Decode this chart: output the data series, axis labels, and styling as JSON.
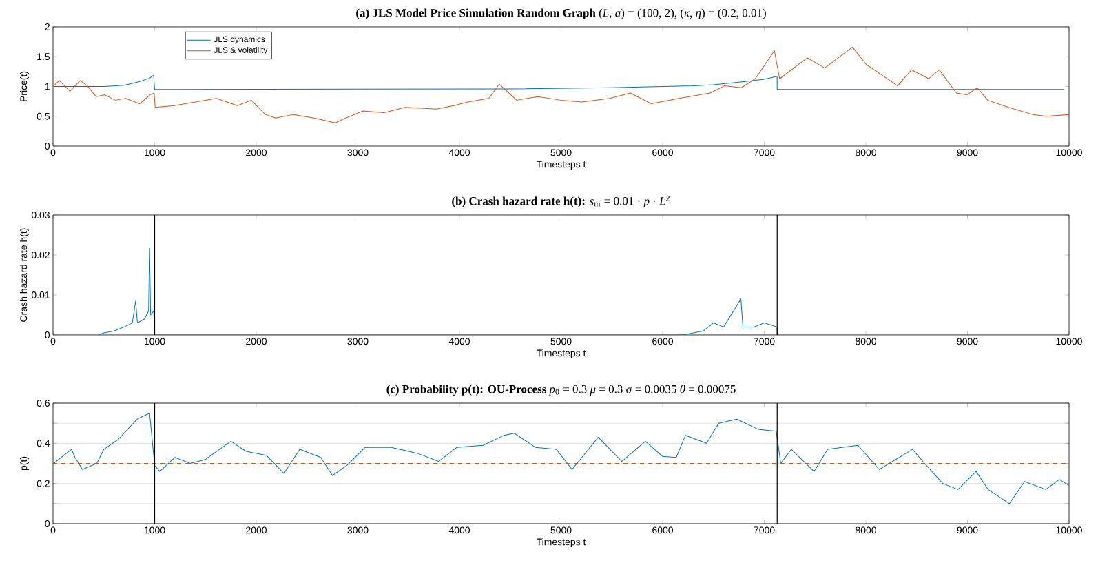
{
  "chart_data": [
    {
      "type": "line",
      "title": "**(a) JLS Model Price Simulation Random Graph** (*L*, *a*) = (100, 2), (*κ*, *η*) = (0.2, 0.01)",
      "xlabel": "Timesteps t",
      "ylabel": "Price(t)",
      "xlim": [
        0,
        10000
      ],
      "ylim": [
        0,
        2
      ],
      "xticks": [
        0,
        1000,
        2000,
        3000,
        4000,
        5000,
        6000,
        7000,
        8000,
        9000,
        10000
      ],
      "yticks": [
        0,
        0.5,
        1,
        1.5,
        2
      ],
      "legend": "top left",
      "series": [
        {
          "name": "JLS dynamics",
          "color": "#0072bd",
          "x": [
            0,
            500,
            700,
            850,
            950,
            990,
            1000,
            4500,
            5500,
            6000,
            6300,
            6500,
            6800,
            7000,
            7126,
            7127,
            9950
          ],
          "values": [
            1.0,
            1.0,
            1.02,
            1.08,
            1.14,
            1.19,
            0.95,
            0.96,
            0.98,
            1.0,
            1.01,
            1.03,
            1.08,
            1.12,
            1.17,
            0.95,
            0.95
          ]
        },
        {
          "name": "JLS & volatility",
          "color": "#d95319",
          "x": [
            0,
            62,
            165,
            268,
            337,
            423,
            509,
            612,
            715,
            852,
            955,
            995,
            1005,
            1196,
            1402,
            1608,
            1814,
            1952,
            2089,
            2192,
            2364,
            2570,
            2777,
            2880,
            3052,
            3258,
            3464,
            3773,
            3945,
            4082,
            4289,
            4392,
            4564,
            4770,
            5000,
            5205,
            5478,
            5683,
            5888,
            6161,
            6468,
            6605,
            6775,
            6912,
            7100,
            7151,
            7424,
            7595,
            7868,
            8004,
            8312,
            8448,
            8619,
            8721,
            8892,
            8994,
            9097,
            9199,
            9404,
            9642,
            9780,
            10000
          ],
          "values": [
            1.0,
            1.1,
            0.92,
            1.1,
            1.01,
            0.83,
            0.86,
            0.77,
            0.8,
            0.71,
            0.86,
            0.89,
            0.65,
            0.68,
            0.74,
            0.8,
            0.68,
            0.77,
            0.53,
            0.47,
            0.53,
            0.47,
            0.39,
            0.47,
            0.59,
            0.56,
            0.65,
            0.62,
            0.68,
            0.74,
            0.8,
            1.04,
            0.77,
            0.83,
            0.77,
            0.74,
            0.8,
            0.89,
            0.71,
            0.8,
            0.89,
            1.01,
            0.98,
            1.13,
            1.6,
            1.13,
            1.48,
            1.31,
            1.66,
            1.37,
            1.01,
            1.28,
            1.13,
            1.28,
            0.89,
            0.86,
            0.98,
            0.77,
            0.65,
            0.53,
            0.5,
            0.53
          ]
        }
      ]
    },
    {
      "type": "line",
      "title": "**(b) Crash hazard rate h(t):** *s*$_{m}$ = 0.01 · *p* · *L*$^{2}$",
      "xlabel": "Timesteps t",
      "ylabel": "Crash hazard rate h(t)",
      "xlim": [
        0,
        10000
      ],
      "ylim": [
        0,
        0.03
      ],
      "xticks": [
        0,
        1000,
        2000,
        3000,
        4000,
        5000,
        6000,
        7000,
        8000,
        9000,
        10000
      ],
      "yticks": [
        0,
        0.01,
        0.02,
        0.03
      ],
      "ref_lines": [
        {
          "axis": "x",
          "value": 1000,
          "color": "#000000"
        },
        {
          "axis": "x",
          "value": 7127,
          "color": "#000000"
        }
      ],
      "series": [
        {
          "color": "#0072bd",
          "x": [
            450,
            500,
            600,
            700,
            780,
            813,
            830,
            900,
            940,
            950,
            960,
            990,
            1000,
            6200,
            6400,
            6500,
            6600,
            6770,
            6790,
            6900,
            7000,
            7126,
            7127
          ],
          "values": [
            0,
            0.0005,
            0.001,
            0.002,
            0.003,
            0.0085,
            0.003,
            0.004,
            0.006,
            0.0217,
            0.005,
            0.006,
            0,
            0,
            0.001,
            0.003,
            0.002,
            0.009,
            0.002,
            0.002,
            0.003,
            0.002,
            0
          ]
        }
      ]
    },
    {
      "type": "line",
      "title": "**(c) Probability p(t): OU-Process** *p*$_{0}$ = 0.3 *μ* = 0.3 *σ* = 0.0035 *θ* = 0.00075",
      "xlabel": "Timesteps t",
      "ylabel": "p(t)",
      "xlim": [
        0,
        10000
      ],
      "ylim": [
        0,
        0.6
      ],
      "xticks": [
        0,
        1000,
        2000,
        3000,
        4000,
        5000,
        6000,
        7000,
        8000,
        9000,
        10000
      ],
      "yticks": [
        0,
        {
          "value": 0.1,
          "label": null
        },
        0.2,
        {
          "value": 0.3,
          "label": null
        },
        0.4,
        {
          "value": 0.5,
          "label": null
        },
        0.6
      ],
      "grid": "y",
      "ref_lines": [
        {
          "axis": "y",
          "value": 0.3,
          "color": "#d95319",
          "line_style": "dashed"
        },
        {
          "axis": "x",
          "value": 1000,
          "color": "#000000"
        },
        {
          "axis": "x",
          "value": 7127,
          "color": "#000000"
        }
      ],
      "series": [
        {
          "color": "#0072bd",
          "x": [
            5,
            181,
            216,
            289,
            430,
            500,
            642,
            827,
            950,
            1000,
            1050,
            1200,
            1350,
            1500,
            1750,
            1900,
            2100,
            2273,
            2428,
            2634,
            2750,
            2892,
            3072,
            3330,
            3588,
            3794,
            3974,
            4232,
            4438,
            4541,
            4747,
            4954,
            5108,
            5366,
            5598,
            5830,
            6000,
            6134,
            6224,
            6432,
            6551,
            6730,
            6939,
            7118,
            7162,
            7267,
            7490,
            7624,
            7922,
            8131,
            8459,
            8578,
            8757,
            8906,
            9085,
            9204,
            9413,
            9562,
            9770,
            9905,
            10000
          ],
          "values": [
            0.3,
            0.37,
            0.33,
            0.27,
            0.3,
            0.37,
            0.42,
            0.52,
            0.55,
            0.29,
            0.26,
            0.33,
            0.3,
            0.32,
            0.41,
            0.36,
            0.34,
            0.25,
            0.37,
            0.33,
            0.24,
            0.29,
            0.38,
            0.38,
            0.35,
            0.31,
            0.38,
            0.39,
            0.44,
            0.45,
            0.38,
            0.37,
            0.27,
            0.43,
            0.31,
            0.41,
            0.335,
            0.33,
            0.44,
            0.4,
            0.5,
            0.52,
            0.47,
            0.46,
            0.3,
            0.37,
            0.26,
            0.37,
            0.39,
            0.27,
            0.37,
            0.3,
            0.2,
            0.17,
            0.26,
            0.17,
            0.1,
            0.21,
            0.17,
            0.22,
            0.19
          ]
        }
      ]
    }
  ]
}
